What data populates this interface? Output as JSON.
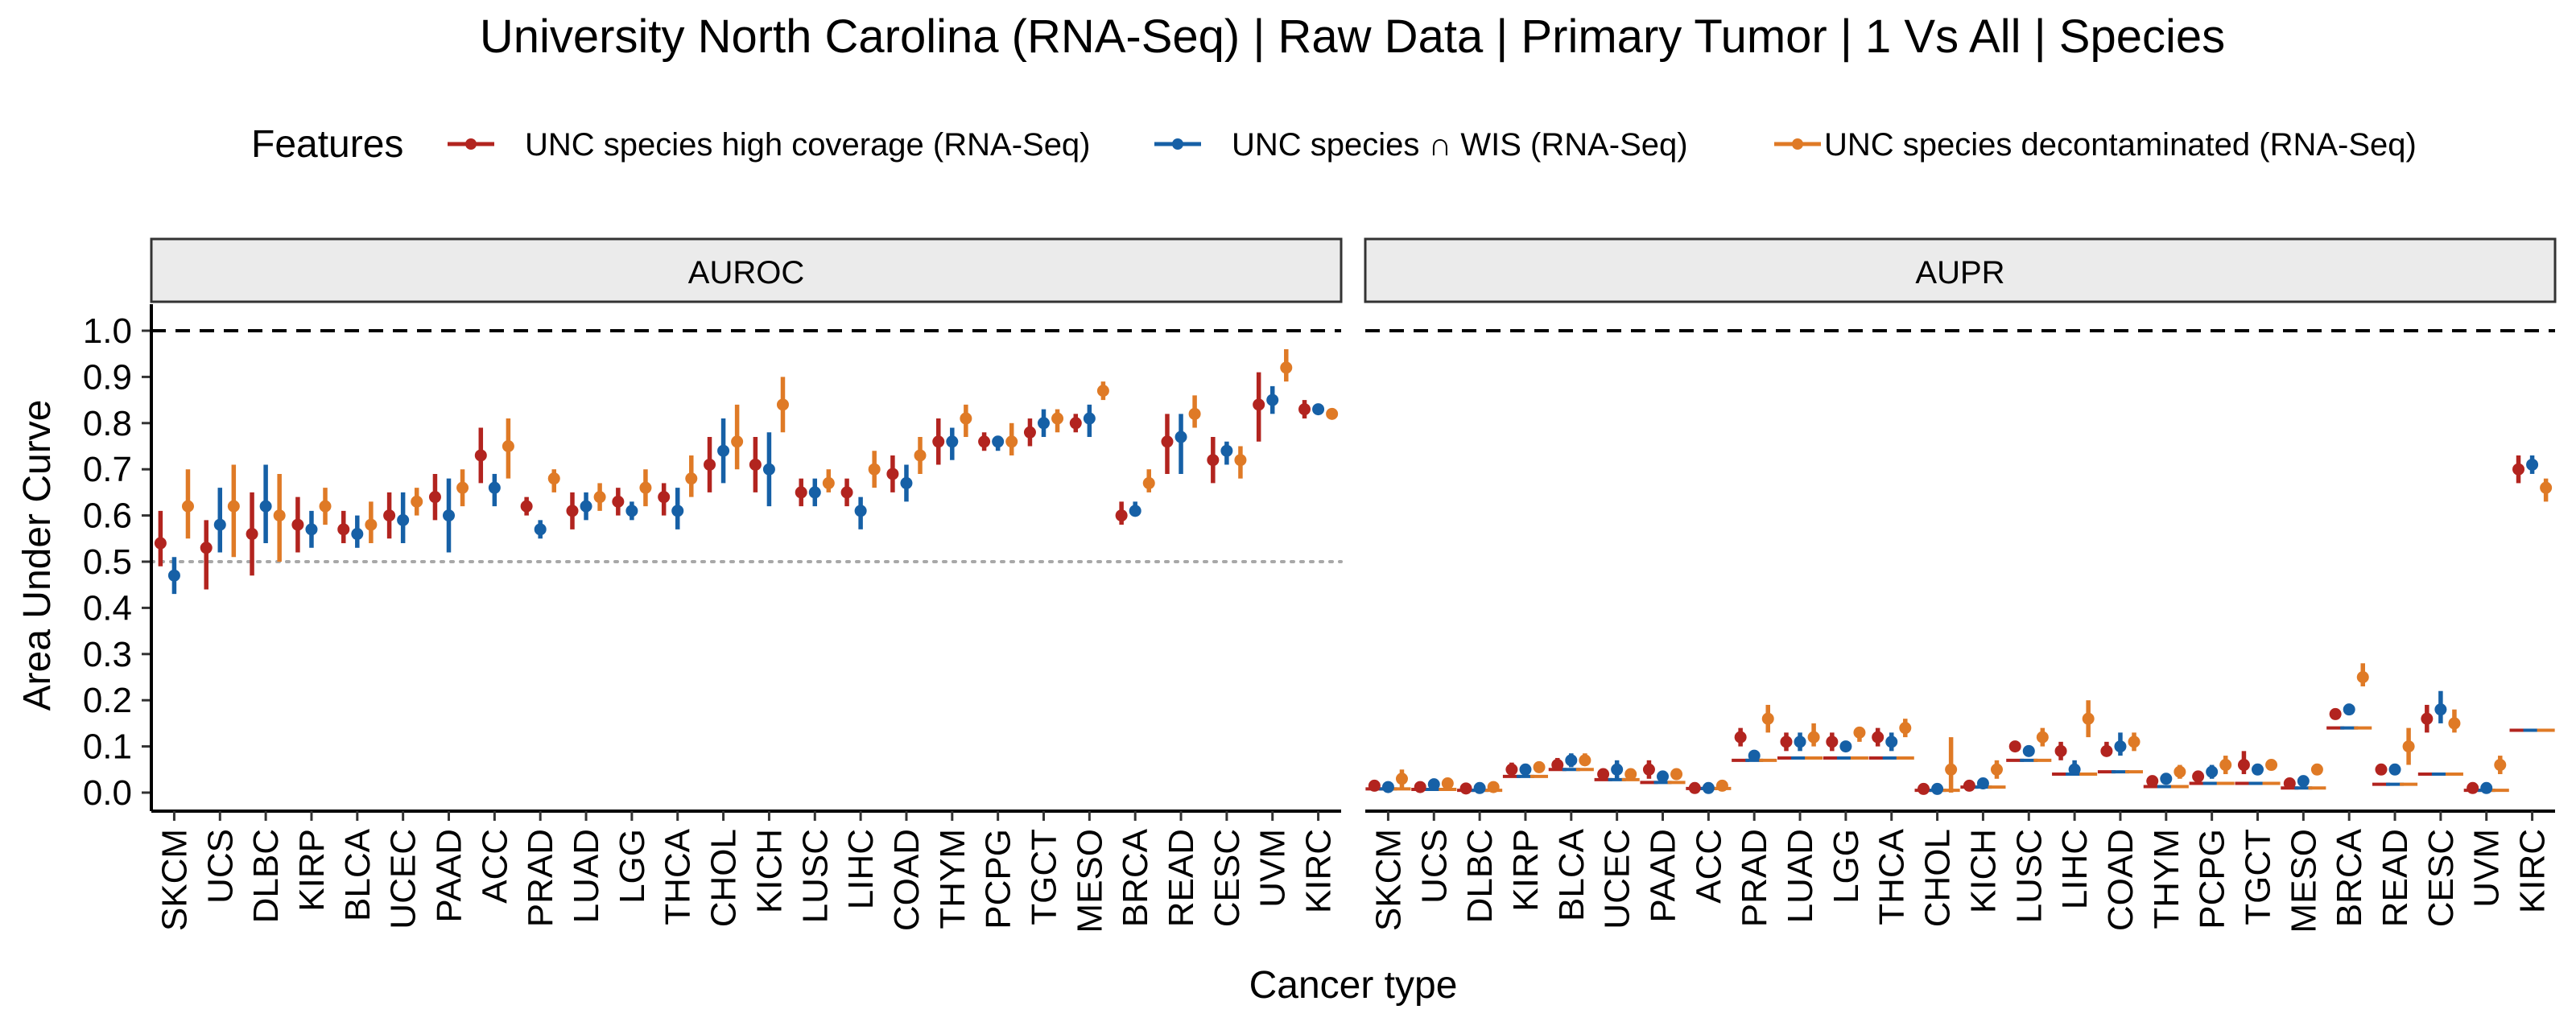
{
  "chart_data": {
    "type": "scatter",
    "title": "University North Carolina (RNA-Seq) | Raw Data | Primary Tumor | 1 Vs All | Species",
    "xlabel": "Cancer type",
    "ylabel": "Area Under Curve",
    "legend": {
      "title": "Features",
      "position": "top"
    },
    "ylim": [
      -0.04,
      1.05
    ],
    "yticks": [
      "0.0",
      "0.1",
      "0.2",
      "0.3",
      "0.4",
      "0.5",
      "0.6",
      "0.7",
      "0.8",
      "0.9",
      "1.0"
    ],
    "reference_lines": {
      "dashed": 1.0,
      "dotted_auroc": 0.5
    },
    "series": [
      {
        "name": "UNC species high coverage (RNA-Seq)",
        "color": "#B2241F"
      },
      {
        "name": "UNC species ∩ WIS (RNA-Seq)",
        "color": "#1660A6"
      },
      {
        "name": "UNC species decontaminated (RNA-Seq)",
        "color": "#DF7A26"
      }
    ],
    "panels": [
      {
        "label": "AUROC",
        "categories": [
          "SKCM",
          "UCS",
          "DLBC",
          "KIRP",
          "BLCA",
          "UCEC",
          "PAAD",
          "ACC",
          "PRAD",
          "LUAD",
          "LGG",
          "THCA",
          "CHOL",
          "KICH",
          "LUSC",
          "LIHC",
          "COAD",
          "THYM",
          "PCPG",
          "TGCT",
          "MESO",
          "BRCA",
          "READ",
          "CESC",
          "UVM",
          "KIRC"
        ],
        "points": [
          [
            [
              0.54,
              0.49,
              0.61
            ],
            [
              0.47,
              0.43,
              0.51
            ],
            [
              0.62,
              0.55,
              0.7
            ]
          ],
          [
            [
              0.53,
              0.44,
              0.59
            ],
            [
              0.58,
              0.52,
              0.66
            ],
            [
              0.62,
              0.51,
              0.71
            ]
          ],
          [
            [
              0.56,
              0.47,
              0.65
            ],
            [
              0.62,
              0.54,
              0.71
            ],
            [
              0.6,
              0.5,
              0.69
            ]
          ],
          [
            [
              0.58,
              0.52,
              0.64
            ],
            [
              0.57,
              0.53,
              0.61
            ],
            [
              0.62,
              0.58,
              0.66
            ]
          ],
          [
            [
              0.57,
              0.54,
              0.61
            ],
            [
              0.56,
              0.53,
              0.6
            ],
            [
              0.58,
              0.54,
              0.63
            ]
          ],
          [
            [
              0.6,
              0.55,
              0.65
            ],
            [
              0.59,
              0.54,
              0.65
            ],
            [
              0.63,
              0.6,
              0.66
            ]
          ],
          [
            [
              0.64,
              0.59,
              0.69
            ],
            [
              0.6,
              0.52,
              0.68
            ],
            [
              0.66,
              0.62,
              0.7
            ]
          ],
          [
            [
              0.73,
              0.67,
              0.79
            ],
            [
              0.66,
              0.62,
              0.69
            ],
            [
              0.75,
              0.68,
              0.81
            ]
          ],
          [
            [
              0.62,
              0.6,
              0.64
            ],
            [
              0.57,
              0.55,
              0.59
            ],
            [
              0.68,
              0.65,
              0.7
            ]
          ],
          [
            [
              0.61,
              0.57,
              0.65
            ],
            [
              0.62,
              0.59,
              0.65
            ],
            [
              0.64,
              0.61,
              0.67
            ]
          ],
          [
            [
              0.63,
              0.6,
              0.66
            ],
            [
              0.61,
              0.59,
              0.63
            ],
            [
              0.66,
              0.62,
              0.7
            ]
          ],
          [
            [
              0.64,
              0.6,
              0.67
            ],
            [
              0.61,
              0.57,
              0.66
            ],
            [
              0.68,
              0.64,
              0.73
            ]
          ],
          [
            [
              0.71,
              0.65,
              0.77
            ],
            [
              0.74,
              0.67,
              0.81
            ],
            [
              0.76,
              0.7,
              0.84
            ]
          ],
          [
            [
              0.71,
              0.65,
              0.77
            ],
            [
              0.7,
              0.62,
              0.78
            ],
            [
              0.84,
              0.78,
              0.9
            ]
          ],
          [
            [
              0.65,
              0.62,
              0.68
            ],
            [
              0.65,
              0.62,
              0.68
            ],
            [
              0.67,
              0.65,
              0.7
            ]
          ],
          [
            [
              0.65,
              0.62,
              0.68
            ],
            [
              0.61,
              0.57,
              0.64
            ],
            [
              0.7,
              0.66,
              0.74
            ]
          ],
          [
            [
              0.69,
              0.65,
              0.73
            ],
            [
              0.67,
              0.63,
              0.71
            ],
            [
              0.73,
              0.69,
              0.77
            ]
          ],
          [
            [
              0.76,
              0.71,
              0.81
            ],
            [
              0.76,
              0.72,
              0.79
            ],
            [
              0.81,
              0.77,
              0.84
            ]
          ],
          [
            [
              0.76,
              0.74,
              0.78
            ],
            [
              0.76,
              0.74,
              0.77
            ],
            [
              0.76,
              0.73,
              0.8
            ]
          ],
          [
            [
              0.78,
              0.75,
              0.81
            ],
            [
              0.8,
              0.77,
              0.83
            ],
            [
              0.81,
              0.78,
              0.83
            ]
          ],
          [
            [
              0.8,
              0.78,
              0.82
            ],
            [
              0.81,
              0.77,
              0.84
            ],
            [
              0.87,
              0.85,
              0.89
            ]
          ],
          [
            [
              0.6,
              0.58,
              0.63
            ],
            [
              0.61,
              0.6,
              0.63
            ],
            [
              0.67,
              0.65,
              0.7
            ]
          ],
          [
            [
              0.76,
              0.69,
              0.82
            ],
            [
              0.77,
              0.69,
              0.82
            ],
            [
              0.82,
              0.79,
              0.86
            ]
          ],
          [
            [
              0.72,
              0.67,
              0.77
            ],
            [
              0.74,
              0.71,
              0.76
            ],
            [
              0.72,
              0.68,
              0.75
            ]
          ],
          [
            [
              0.84,
              0.76,
              0.91
            ],
            [
              0.85,
              0.82,
              0.88
            ],
            [
              0.92,
              0.89,
              0.96
            ]
          ],
          [
            [
              0.83,
              0.81,
              0.85
            ],
            [
              0.83,
              0.82,
              0.84
            ],
            [
              0.82,
              0.81,
              0.83
            ]
          ]
        ]
      },
      {
        "label": "AUPR",
        "categories": [
          "SKCM",
          "UCS",
          "DLBC",
          "KIRP",
          "BLCA",
          "UCEC",
          "PAAD",
          "ACC",
          "PRAD",
          "LUAD",
          "LGG",
          "THCA",
          "CHOL",
          "KICH",
          "LUSC",
          "LIHC",
          "COAD",
          "THYM",
          "PCPG",
          "TGCT",
          "MESO",
          "BRCA",
          "READ",
          "CESC",
          "UVM",
          "KIRC"
        ],
        "baselines": [
          0.008,
          0.007,
          0.005,
          0.035,
          0.05,
          0.028,
          0.022,
          0.009,
          0.07,
          0.075,
          0.075,
          0.075,
          0.005,
          0.012,
          0.07,
          0.04,
          0.045,
          0.013,
          0.02,
          0.02,
          0.01,
          0.14,
          0.018,
          0.04,
          0.005,
          0.135
        ],
        "points": [
          [
            [
              0.015,
              0.01,
              0.02
            ],
            [
              0.012,
              0.008,
              0.016
            ],
            [
              0.03,
              0.01,
              0.05
            ]
          ],
          [
            [
              0.012,
              0.008,
              0.016
            ],
            [
              0.018,
              0.01,
              0.025
            ],
            [
              0.02,
              0.01,
              0.03
            ]
          ],
          [
            [
              0.009,
              0.006,
              0.012
            ],
            [
              0.01,
              0.007,
              0.013
            ],
            [
              0.012,
              0.008,
              0.016
            ]
          ],
          [
            [
              0.05,
              0.04,
              0.065
            ],
            [
              0.05,
              0.045,
              0.055
            ],
            [
              0.055,
              0.045,
              0.065
            ]
          ],
          [
            [
              0.06,
              0.05,
              0.075
            ],
            [
              0.07,
              0.055,
              0.085
            ],
            [
              0.07,
              0.06,
              0.085
            ]
          ],
          [
            [
              0.04,
              0.03,
              0.05
            ],
            [
              0.05,
              0.03,
              0.07
            ],
            [
              0.04,
              0.03,
              0.05
            ]
          ],
          [
            [
              0.05,
              0.03,
              0.07
            ],
            [
              0.035,
              0.03,
              0.04
            ],
            [
              0.04,
              0.035,
              0.045
            ]
          ],
          [
            [
              0.01,
              0.007,
              0.013
            ],
            [
              0.01,
              0.007,
              0.013
            ],
            [
              0.015,
              0.01,
              0.02
            ]
          ],
          [
            [
              0.12,
              0.1,
              0.14
            ],
            [
              0.08,
              0.07,
              0.09
            ],
            [
              0.16,
              0.13,
              0.19
            ]
          ],
          [
            [
              0.11,
              0.09,
              0.13
            ],
            [
              0.11,
              0.09,
              0.13
            ],
            [
              0.12,
              0.1,
              0.15
            ]
          ],
          [
            [
              0.11,
              0.09,
              0.13
            ],
            [
              0.1,
              0.09,
              0.11
            ],
            [
              0.13,
              0.11,
              0.14
            ]
          ],
          [
            [
              0.12,
              0.1,
              0.14
            ],
            [
              0.11,
              0.09,
              0.13
            ],
            [
              0.14,
              0.12,
              0.16
            ]
          ],
          [
            [
              0.008,
              0.005,
              0.012
            ],
            [
              0.008,
              0.005,
              0.012
            ],
            [
              0.05,
              0.0,
              0.12
            ]
          ],
          [
            [
              0.015,
              0.01,
              0.02
            ],
            [
              0.02,
              0.01,
              0.03
            ],
            [
              0.05,
              0.03,
              0.07
            ]
          ],
          [
            [
              0.1,
              0.09,
              0.11
            ],
            [
              0.09,
              0.085,
              0.1
            ],
            [
              0.12,
              0.1,
              0.14
            ]
          ],
          [
            [
              0.09,
              0.07,
              0.11
            ],
            [
              0.05,
              0.04,
              0.07
            ],
            [
              0.16,
              0.12,
              0.2
            ]
          ],
          [
            [
              0.09,
              0.08,
              0.11
            ],
            [
              0.1,
              0.08,
              0.13
            ],
            [
              0.11,
              0.09,
              0.13
            ]
          ],
          [
            [
              0.025,
              0.02,
              0.03
            ],
            [
              0.03,
              0.02,
              0.04
            ],
            [
              0.045,
              0.03,
              0.06
            ]
          ],
          [
            [
              0.035,
              0.03,
              0.04
            ],
            [
              0.045,
              0.03,
              0.06
            ],
            [
              0.06,
              0.04,
              0.08
            ]
          ],
          [
            [
              0.06,
              0.04,
              0.09
            ],
            [
              0.05,
              0.04,
              0.06
            ],
            [
              0.06,
              0.05,
              0.07
            ]
          ],
          [
            [
              0.02,
              0.015,
              0.025
            ],
            [
              0.025,
              0.02,
              0.03
            ],
            [
              0.05,
              0.04,
              0.06
            ]
          ],
          [
            [
              0.17,
              0.16,
              0.18
            ],
            [
              0.18,
              0.17,
              0.19
            ],
            [
              0.25,
              0.23,
              0.28
            ]
          ],
          [
            [
              0.05,
              0.04,
              0.06
            ],
            [
              0.05,
              0.04,
              0.06
            ],
            [
              0.1,
              0.06,
              0.14
            ]
          ],
          [
            [
              0.16,
              0.13,
              0.19
            ],
            [
              0.18,
              0.15,
              0.22
            ],
            [
              0.15,
              0.13,
              0.18
            ]
          ],
          [
            [
              0.01,
              0.007,
              0.013
            ],
            [
              0.01,
              0.007,
              0.013
            ],
            [
              0.06,
              0.04,
              0.08
            ]
          ],
          [
            [
              0.7,
              0.67,
              0.73
            ],
            [
              0.71,
              0.69,
              0.73
            ],
            [
              0.66,
              0.63,
              0.68
            ]
          ]
        ]
      }
    ]
  }
}
